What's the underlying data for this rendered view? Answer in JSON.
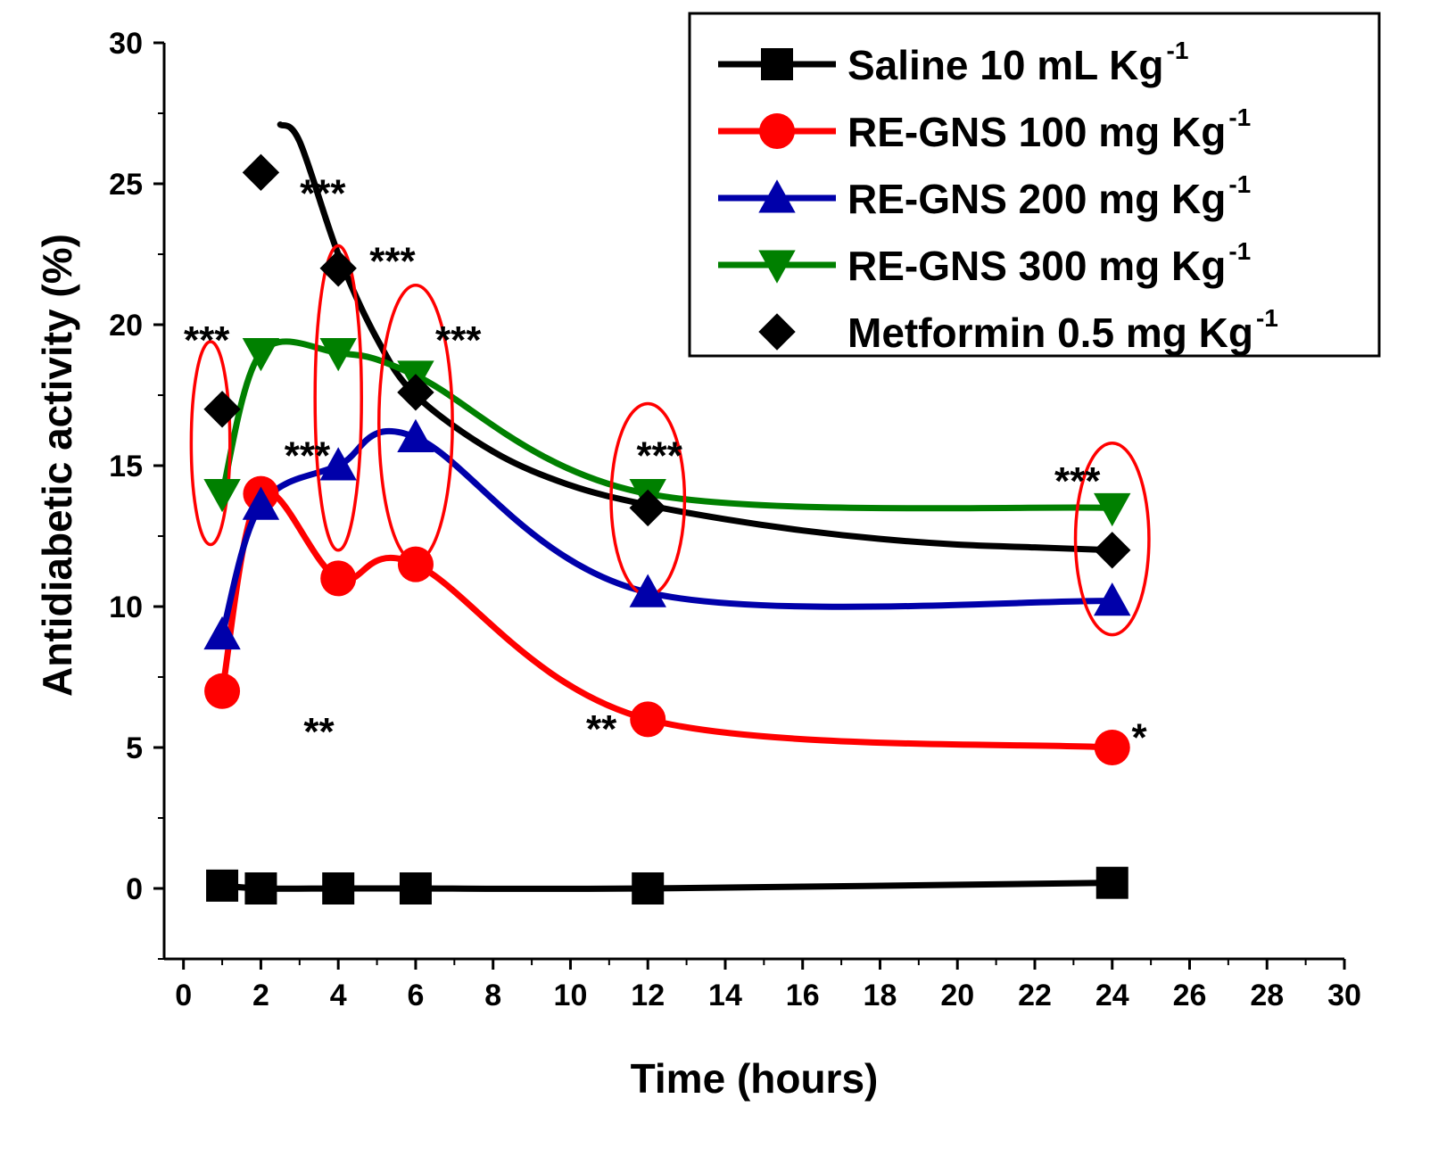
{
  "chart_data": {
    "type": "line",
    "title": "",
    "xlabel": "Time (hours)",
    "ylabel": "Antidiabetic activity (%)",
    "xlim": [
      -0.5,
      30
    ],
    "ylim": [
      -2.5,
      30
    ],
    "xticks": [
      0,
      2,
      4,
      6,
      8,
      10,
      12,
      14,
      16,
      18,
      20,
      22,
      24,
      26,
      28,
      30
    ],
    "yticks": [
      0,
      5,
      10,
      15,
      20,
      25,
      30
    ],
    "xtick_labels": [
      "0",
      "2",
      "4",
      "6",
      "8",
      "10",
      "12",
      "14",
      "16",
      "18",
      "20",
      "22",
      "24",
      "26",
      "28",
      "30"
    ],
    "ytick_labels": [
      "0",
      "5",
      "10",
      "15",
      "20",
      "25",
      "30"
    ],
    "legend_position": "top-right",
    "series": [
      {
        "name": "Saline 10 mL Kg",
        "name_sup": "-1",
        "color": "#000000",
        "marker": "square",
        "x": [
          1,
          2,
          4,
          6,
          12,
          24
        ],
        "values": [
          0.1,
          0.0,
          0.0,
          0.0,
          0.0,
          0.2
        ]
      },
      {
        "name": "RE-GNS 100 mg Kg",
        "name_sup": "-1",
        "color": "#ff0000",
        "marker": "circle",
        "x": [
          1,
          2,
          4,
          6,
          12,
          24
        ],
        "values": [
          7,
          14,
          11,
          11.5,
          6,
          5
        ]
      },
      {
        "name": "RE-GNS 200 mg Kg",
        "name_sup": "-1",
        "color": "#0000aa",
        "marker": "triangle-up",
        "x": [
          1,
          2,
          4,
          6,
          12,
          24
        ],
        "values": [
          9,
          13.6,
          15,
          16,
          10.5,
          10.2
        ]
      },
      {
        "name": "RE-GNS 300 mg Kg",
        "name_sup": "-1",
        "color": "#008000",
        "marker": "triangle-down",
        "x": [
          1,
          2,
          4,
          6,
          12,
          24
        ],
        "values": [
          14,
          19,
          19,
          18.2,
          14,
          13.5
        ]
      },
      {
        "name": "Metformin 0.5 mg Kg",
        "name_sup": "-1",
        "color": "#000000",
        "marker": "diamond",
        "x": [
          1,
          2,
          4,
          6,
          12,
          24
        ],
        "values": [
          17,
          25.4,
          22,
          17.6,
          13.5,
          12
        ]
      }
    ],
    "metformin_trend": {
      "color": "#000000",
      "x": [
        2.5,
        3,
        4,
        5,
        6,
        8,
        10,
        12,
        14,
        16,
        18,
        20,
        22,
        24
      ],
      "values": [
        27.1,
        26.5,
        22.5,
        19.5,
        17.5,
        15.5,
        14.3,
        13.6,
        13.1,
        12.7,
        12.4,
        12.2,
        12.1,
        12.0
      ]
    },
    "annotations": [
      {
        "text": "***",
        "x": 0.6,
        "y": 19.5
      },
      {
        "text": "***",
        "x": 3.6,
        "y": 24.7
      },
      {
        "text": "***",
        "x": 5.4,
        "y": 22.3
      },
      {
        "text": "***",
        "x": 7.1,
        "y": 19.5
      },
      {
        "text": "***",
        "x": 3.2,
        "y": 15.4
      },
      {
        "text": "***",
        "x": 12.3,
        "y": 15.4
      },
      {
        "text": "***",
        "x": 23.1,
        "y": 14.5
      },
      {
        "text": "**",
        "x": 3.5,
        "y": 5.6
      },
      {
        "text": "**",
        "x": 10.8,
        "y": 5.7
      },
      {
        "text": "*",
        "x": 24.7,
        "y": 5.4
      }
    ],
    "highlight_groups": [
      {
        "x": 0.7,
        "y": 15.8,
        "rx_hours": 0.5,
        "ry_units": 3.6
      },
      {
        "x": 4.0,
        "y": 17.4,
        "rx_hours": 0.6,
        "ry_units": 5.4
      },
      {
        "x": 6.0,
        "y": 16.5,
        "rx_hours": 0.95,
        "ry_units": 4.9
      },
      {
        "x": 12.0,
        "y": 13.8,
        "rx_hours": 0.95,
        "ry_units": 3.4
      },
      {
        "x": 24.0,
        "y": 12.4,
        "rx_hours": 0.95,
        "ry_units": 3.4
      }
    ]
  }
}
